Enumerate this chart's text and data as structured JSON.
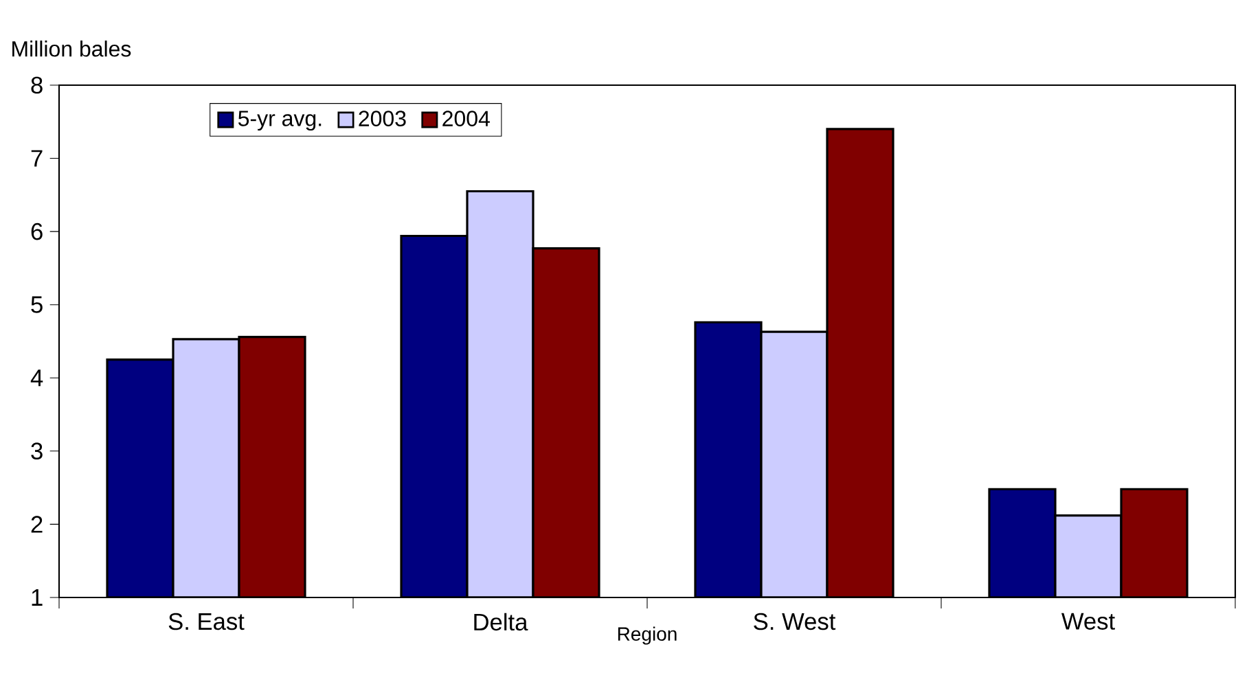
{
  "chart_data": {
    "type": "bar",
    "ylabel": "Million bales",
    "xlabel": "Region",
    "categories": [
      "S. East",
      "Delta",
      "S. West",
      "West"
    ],
    "series": [
      {
        "name": "5-yr avg.",
        "color": "#000080",
        "values": [
          4.25,
          5.94,
          4.76,
          2.48
        ]
      },
      {
        "name": "2003",
        "color": "#ccccff",
        "values": [
          4.53,
          6.55,
          4.63,
          2.12
        ]
      },
      {
        "name": "2004",
        "color": "#800000",
        "values": [
          4.56,
          5.77,
          7.4,
          2.48
        ]
      }
    ],
    "ylim": [
      1,
      8
    ],
    "yticks": [
      1,
      2,
      3,
      4,
      5,
      6,
      7,
      8
    ],
    "grid": false,
    "legend": "top left"
  }
}
